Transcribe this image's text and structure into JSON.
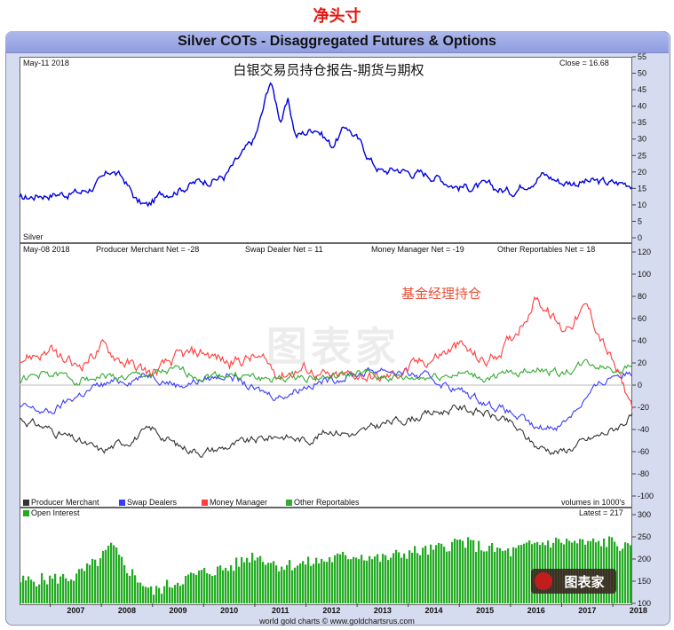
{
  "page_title": "净头寸",
  "chart_title": "Silver COTs - Disaggregated Futures & Options",
  "chart_subtitle_cn": "白银交易员持仓报告-期货与期权",
  "footer_credit": "world gold charts © www.goldchartsrus.com",
  "logo_text": "图表家",
  "watermark_text": "图表家",
  "colors": {
    "price": "#0000e0",
    "producer": "#333333",
    "swap": "#3a3aff",
    "money_manager": "#ff3b3b",
    "other": "#33aa33",
    "open_interest": "#22aa22"
  },
  "chart_data": [
    {
      "type": "line",
      "panel": "price",
      "corner_label": "May-11  2018",
      "series_label": "Silver",
      "latest_label": "Close = 16.68",
      "ylim": [
        0,
        55
      ],
      "yticks": [
        0,
        5,
        10,
        15,
        20,
        25,
        30,
        35,
        40,
        45,
        50,
        55
      ],
      "x": [
        2006.4,
        2006.8,
        2007.2,
        2007.6,
        2008.0,
        2008.2,
        2008.45,
        2008.7,
        2008.9,
        2009.2,
        2009.6,
        2010.0,
        2010.4,
        2010.8,
        2011.0,
        2011.15,
        2011.3,
        2011.5,
        2011.65,
        2011.8,
        2012.0,
        2012.2,
        2012.5,
        2012.8,
        2013.0,
        2013.3,
        2013.5,
        2013.8,
        2014.0,
        2014.5,
        2015.0,
        2015.5,
        2016.0,
        2016.6,
        2017.0,
        2017.5,
        2018.0,
        2018.38
      ],
      "series": [
        {
          "name": "Silver",
          "values": [
            11.5,
            13.2,
            13.5,
            13.8,
            17,
            20.5,
            17.5,
            11,
            9.5,
            13.5,
            15.5,
            17.5,
            18.5,
            26,
            30,
            38,
            48,
            36,
            41,
            31,
            32,
            34,
            28,
            34,
            30,
            23,
            20,
            21,
            20,
            19,
            15.5,
            15.5,
            14,
            19.5,
            17,
            17,
            16.5,
            16.7
          ]
        }
      ]
    },
    {
      "type": "line",
      "panel": "net_positions",
      "corner_label": "May-08  2018",
      "ylim": [
        -100,
        120
      ],
      "yticks": [
        -100,
        -80,
        -60,
        -40,
        -20,
        0,
        20,
        40,
        60,
        80,
        100,
        120
      ],
      "annotation": "基金经理持仓",
      "header_values": [
        {
          "label": "Producer Merchant Net = -28"
        },
        {
          "label": "Swap Dealer Net = 11"
        },
        {
          "label": "Money Manager Net = -19"
        },
        {
          "label": "Other Reportables Net = 18"
        }
      ],
      "legend": [
        "Producer Merchant",
        "Swap Dealers",
        "Money Manager",
        "Other Reportables"
      ],
      "units_note": "volumes in 1000's",
      "x": [
        2006.4,
        2007.0,
        2007.5,
        2008.0,
        2008.5,
        2009.0,
        2009.5,
        2010.0,
        2010.5,
        2011.0,
        2011.5,
        2012.0,
        2012.5,
        2013.0,
        2013.5,
        2014.0,
        2014.5,
        2015.0,
        2015.5,
        2016.0,
        2016.5,
        2017.0,
        2017.5,
        2018.0,
        2018.38
      ],
      "series": [
        {
          "name": "Producer Merchant",
          "values": [
            -30,
            -40,
            -50,
            -60,
            -50,
            -40,
            -55,
            -60,
            -55,
            -50,
            -45,
            -50,
            -40,
            -45,
            -35,
            -30,
            -25,
            -20,
            -25,
            -35,
            -55,
            -60,
            -50,
            -40,
            -28
          ]
        },
        {
          "name": "Swap Dealers",
          "values": [
            -20,
            -25,
            -10,
            0,
            5,
            10,
            0,
            5,
            10,
            -5,
            -10,
            0,
            5,
            10,
            15,
            10,
            5,
            -5,
            -15,
            -25,
            -40,
            -35,
            -10,
            10,
            11
          ]
        },
        {
          "name": "Money Manager",
          "values": [
            25,
            30,
            15,
            35,
            20,
            10,
            25,
            30,
            20,
            25,
            10,
            15,
            5,
            10,
            5,
            15,
            25,
            35,
            20,
            40,
            80,
            50,
            70,
            20,
            -19
          ]
        },
        {
          "name": "Other Reportables",
          "values": [
            5,
            10,
            5,
            8,
            6,
            10,
            12,
            8,
            10,
            6,
            5,
            8,
            6,
            10,
            8,
            5,
            8,
            10,
            6,
            10,
            15,
            10,
            20,
            15,
            18
          ]
        }
      ]
    },
    {
      "type": "bar",
      "panel": "open_interest",
      "legend": [
        "Open Interest"
      ],
      "latest_label": "Latest = 217",
      "ylim": [
        100,
        300
      ],
      "yticks": [
        100,
        150,
        200,
        250,
        300
      ],
      "x_ticks": [
        "2007",
        "2008",
        "2009",
        "2010",
        "2011",
        "2012",
        "2013",
        "2014",
        "2015",
        "2016",
        "2017",
        "2018"
      ],
      "x": [
        2006.4,
        2007.0,
        2007.5,
        2008.0,
        2008.2,
        2008.5,
        2009.0,
        2009.5,
        2010.0,
        2010.5,
        2011.0,
        2011.5,
        2012.0,
        2012.5,
        2013.0,
        2013.5,
        2014.0,
        2014.5,
        2015.0,
        2015.5,
        2016.0,
        2016.5,
        2017.0,
        2017.5,
        2018.0,
        2018.38
      ],
      "series": [
        {
          "name": "Open Interest",
          "values": [
            150,
            155,
            160,
            200,
            230,
            180,
            125,
            150,
            170,
            180,
            210,
            185,
            190,
            200,
            210,
            200,
            215,
            220,
            240,
            225,
            215,
            235,
            240,
            235,
            240,
            217
          ]
        }
      ]
    }
  ]
}
